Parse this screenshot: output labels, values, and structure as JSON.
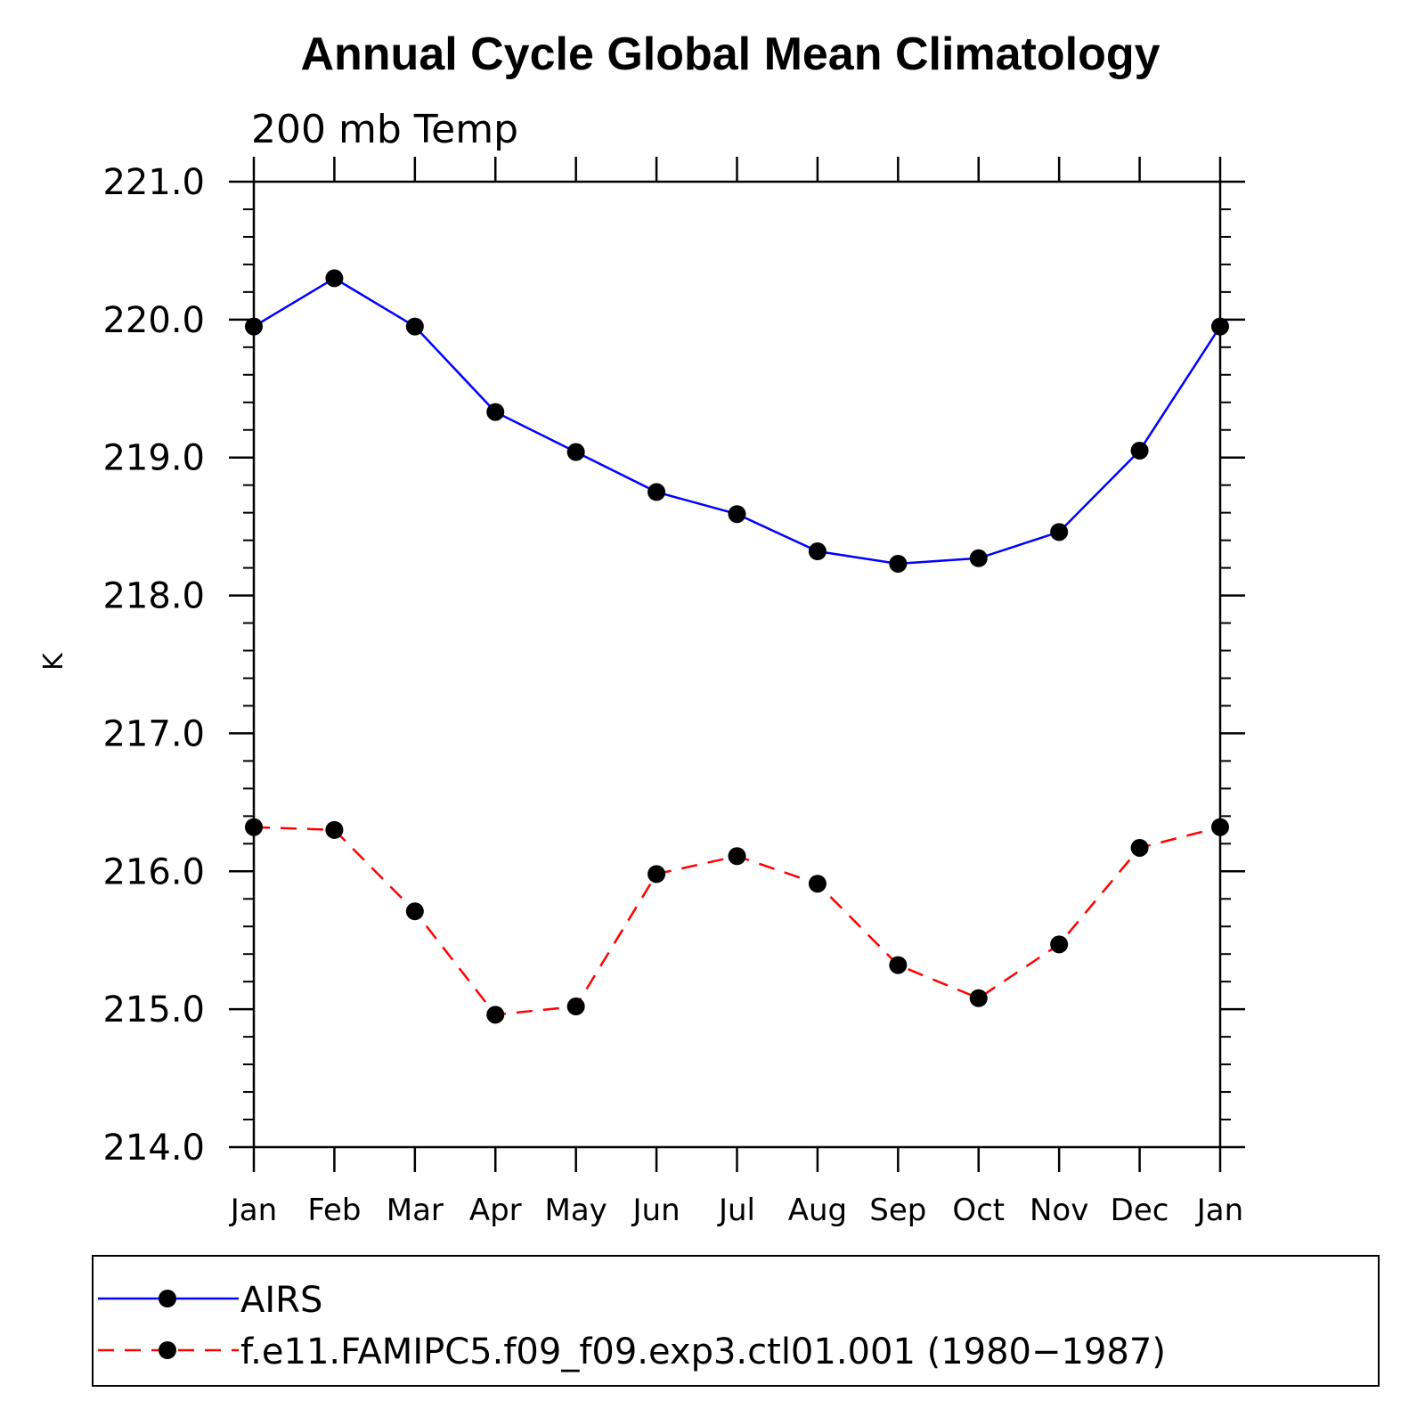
{
  "chart_data": {
    "type": "line",
    "title": "Annual Cycle Global Mean Climatology",
    "subtitle": "200 mb Temp",
    "ylabel": "K",
    "ylim": [
      214.0,
      221.0
    ],
    "y_ticks": [
      "214.0",
      "215.0",
      "216.0",
      "217.0",
      "218.0",
      "219.0",
      "220.0",
      "221.0"
    ],
    "categories": [
      "Jan",
      "Feb",
      "Mar",
      "Apr",
      "May",
      "Jun",
      "Jul",
      "Aug",
      "Sep",
      "Oct",
      "Nov",
      "Dec",
      "Jan"
    ],
    "grid": false,
    "legend_position": "bottom",
    "series": [
      {
        "name": "AIRS",
        "color": "#0000ff",
        "line_style": "solid",
        "marker": "filled-circle",
        "values": [
          219.95,
          220.3,
          219.95,
          219.33,
          219.04,
          218.75,
          218.59,
          218.32,
          218.23,
          218.27,
          218.46,
          219.05,
          219.95
        ]
      },
      {
        "name": "f.e11.FAMIPC5.f09_f09.exp3.ctl01.001 (1980−1987)",
        "color": "#ff0000",
        "line_style": "dashed",
        "marker": "filled-circle",
        "values": [
          216.32,
          216.3,
          215.71,
          214.96,
          215.02,
          215.98,
          216.11,
          215.91,
          215.32,
          215.08,
          215.47,
          216.17,
          216.32
        ]
      }
    ]
  }
}
